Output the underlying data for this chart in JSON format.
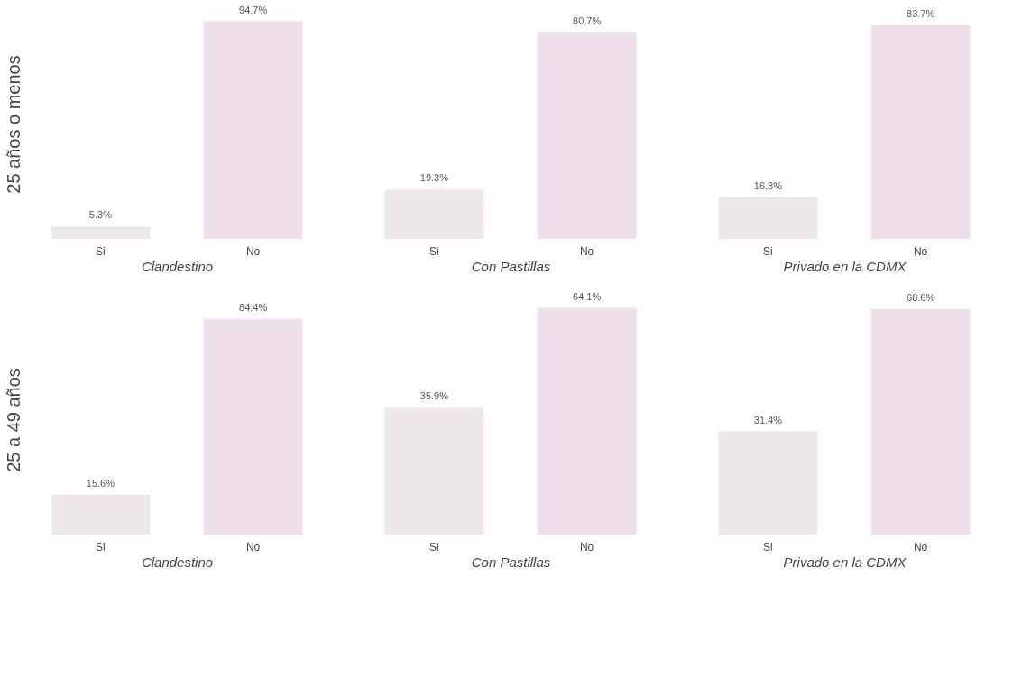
{
  "chart_data": [
    {
      "type": "bar",
      "categories": [
        "Si",
        "No"
      ],
      "values": [
        5.3,
        94.7
      ],
      "colors": [
        "#eee8ec",
        "#efdfea"
      ],
      "value_labels": [
        "5.3%",
        "94.7%"
      ],
      "xlabel": "Clandestino",
      "ylabel": "25 años o menos",
      "tick_labels": "x",
      "grid": false,
      "legend": false
    },
    {
      "type": "bar",
      "categories": [
        "Si",
        "No"
      ],
      "values": [
        19.3,
        80.7
      ],
      "colors": [
        "#eee8ec",
        "#efdfea"
      ],
      "value_labels": [
        "19.3%",
        "80.7%"
      ],
      "xlabel": "Con Pastillas",
      "tick_labels": "x",
      "grid": false,
      "legend": false
    },
    {
      "type": "bar",
      "categories": [
        "Si",
        "No"
      ],
      "values": [
        16.3,
        83.7
      ],
      "colors": [
        "#eee8ec",
        "#efdfea"
      ],
      "value_labels": [
        "16.3%",
        "83.7%"
      ],
      "xlabel": "Privado en la CDMX",
      "tick_labels": "x",
      "grid": false,
      "legend": false
    },
    {
      "type": "bar",
      "categories": [
        "Si",
        "No"
      ],
      "values": [
        15.6,
        84.4
      ],
      "colors": [
        "#eee8ec",
        "#efdfea"
      ],
      "value_labels": [
        "15.6%",
        "84.4%"
      ],
      "xlabel": "Clandestino",
      "ylabel": "25 a 49 años",
      "tick_labels": "x",
      "grid": false,
      "legend": false
    },
    {
      "type": "bar",
      "categories": [
        "Si",
        "No"
      ],
      "values": [
        35.9,
        64.1
      ],
      "colors": [
        "#eee8ec",
        "#efdfea"
      ],
      "value_labels": [
        "35.9%",
        "64.1%"
      ],
      "xlabel": "Con Pastillas",
      "tick_labels": "x",
      "grid": false,
      "legend": false
    },
    {
      "type": "bar",
      "categories": [
        "Si",
        "No"
      ],
      "values": [
        31.4,
        68.6
      ],
      "colors": [
        "#eee8ec",
        "#efdfea"
      ],
      "value_labels": [
        "31.4%",
        "68.6%"
      ],
      "xlabel": "Privado en la CDMX",
      "tick_labels": "x",
      "grid": false,
      "legend": false
    }
  ]
}
